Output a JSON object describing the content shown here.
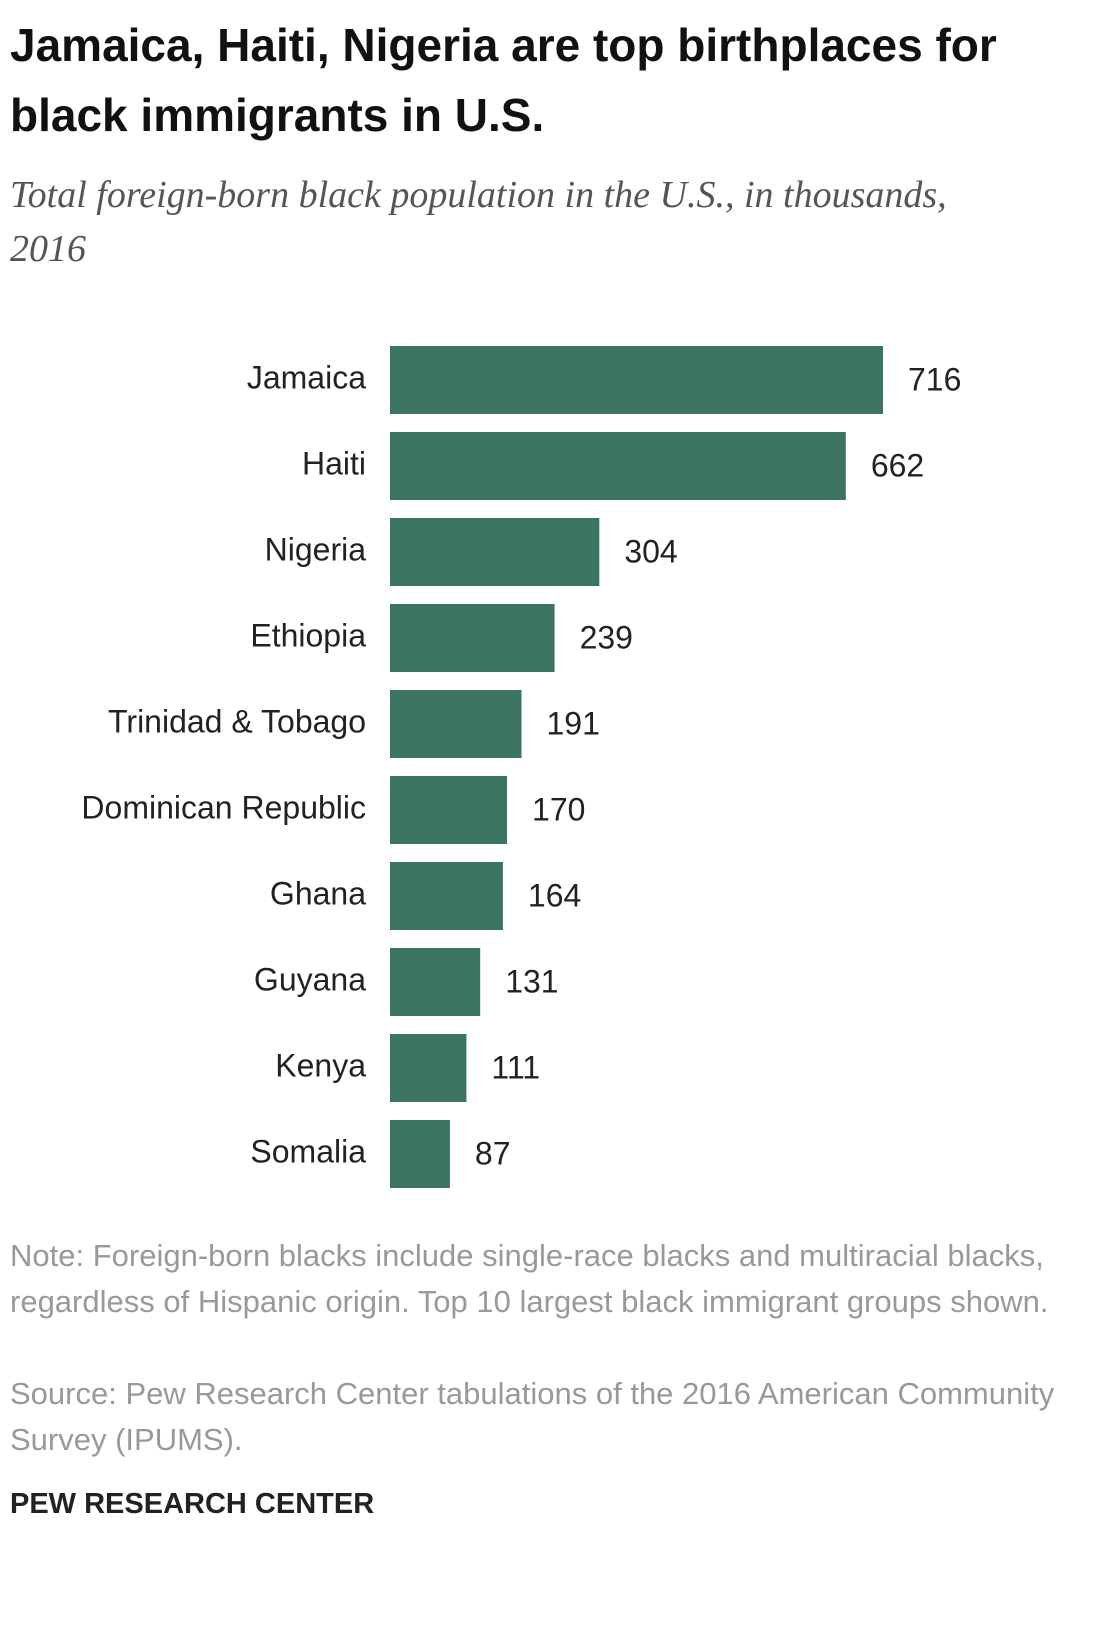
{
  "chart_data": {
    "type": "bar",
    "orientation": "horizontal",
    "title": "Jamaica, Haiti, Nigeria are top birthplaces for black immigrants in U.S.",
    "subtitle": "Total foreign-born black population in the U.S., in thousands, 2016",
    "categories": [
      "Jamaica",
      "Haiti",
      "Nigeria",
      "Ethiopia",
      "Trinidad & Tobago",
      "Dominican Republic",
      "Ghana",
      "Guyana",
      "Kenya",
      "Somalia"
    ],
    "values": [
      716,
      662,
      304,
      239,
      191,
      170,
      164,
      131,
      111,
      87
    ],
    "color": "#3b7462",
    "note": "Note: Foreign-born blacks include single-race blacks and multiracial blacks, regardless of Hispanic origin. Top 10 largest black immigrant groups shown.",
    "source": "Source: Pew Research Center tabulations of the 2016 American Community Survey (IPUMS).",
    "credit": "PEW RESEARCH CENTER"
  }
}
